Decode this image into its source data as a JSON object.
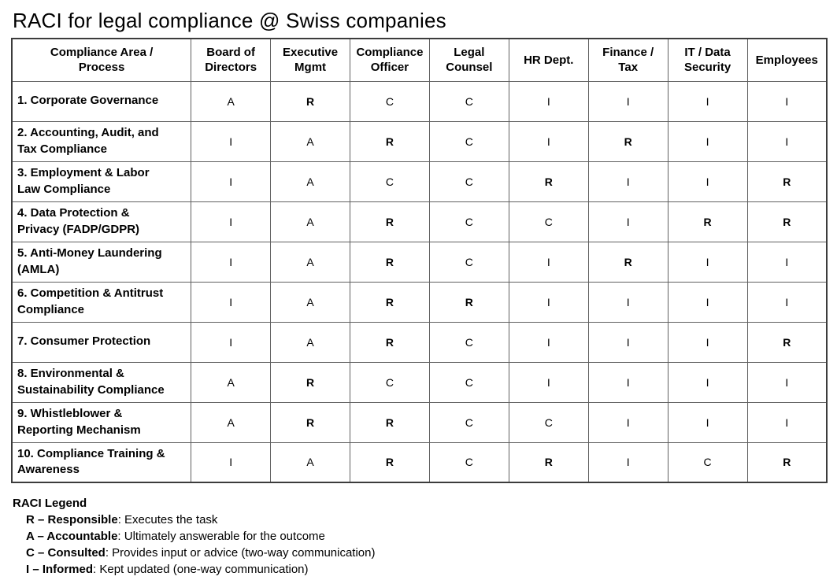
{
  "title": "RACI for legal compliance @ Swiss companies",
  "table": {
    "headers": [
      "Compliance Area /\nProcess",
      "Board of\nDirectors",
      "Executive\nMgmt",
      "Compliance\nOfficer",
      "Legal\nCounsel",
      "HR Dept.",
      "Finance /\nTax",
      "IT / Data\nSecurity",
      "Employees"
    ],
    "rows": [
      {
        "area": "1. Corporate Governance",
        "values": [
          "A",
          "R",
          "C",
          "C",
          "I",
          "I",
          "I",
          "I"
        ]
      },
      {
        "area": "2. Accounting, Audit, and\nTax Compliance",
        "values": [
          "I",
          "A",
          "R",
          "C",
          "I",
          "R",
          "I",
          "I"
        ]
      },
      {
        "area": "3. Employment & Labor\nLaw Compliance",
        "values": [
          "I",
          "A",
          "C",
          "C",
          "R",
          "I",
          "I",
          "R"
        ]
      },
      {
        "area": "4. Data Protection &\nPrivacy (FADP/GDPR)",
        "values": [
          "I",
          "A",
          "R",
          "C",
          "C",
          "I",
          "R",
          "R"
        ]
      },
      {
        "area": "5. Anti-Money Laundering\n(AMLA)",
        "values": [
          "I",
          "A",
          "R",
          "C",
          "I",
          "R",
          "I",
          "I"
        ]
      },
      {
        "area": "6. Competition & Antitrust\nCompliance",
        "values": [
          "I",
          "A",
          "R",
          "R",
          "I",
          "I",
          "I",
          "I"
        ]
      },
      {
        "area": "7. Consumer Protection",
        "values": [
          "I",
          "A",
          "R",
          "C",
          "I",
          "I",
          "I",
          "R"
        ]
      },
      {
        "area": "8. Environmental &\nSustainability Compliance",
        "values": [
          "A",
          "R",
          "C",
          "C",
          "I",
          "I",
          "I",
          "I"
        ]
      },
      {
        "area": "9. Whistleblower &\nReporting Mechanism",
        "values": [
          "A",
          "R",
          "R",
          "C",
          "C",
          "I",
          "I",
          "I"
        ]
      },
      {
        "area": "10. Compliance Training &\nAwareness",
        "values": [
          "I",
          "A",
          "R",
          "C",
          "R",
          "I",
          "C",
          "R"
        ]
      }
    ]
  },
  "legend": {
    "heading": "RACI Legend",
    "items": [
      {
        "term": "R – Responsible",
        "description": ": Executes the task"
      },
      {
        "term": "A – Accountable",
        "description": ": Ultimately answerable for the outcome"
      },
      {
        "term": "C – Consulted",
        "description": ": Provides input or advice (two-way communication)"
      },
      {
        "term": "I – Informed",
        "description": ": Kept updated (one-way communication)"
      }
    ]
  },
  "colors": {
    "text": "#000000",
    "background": "#ffffff",
    "border": "#606060"
  }
}
